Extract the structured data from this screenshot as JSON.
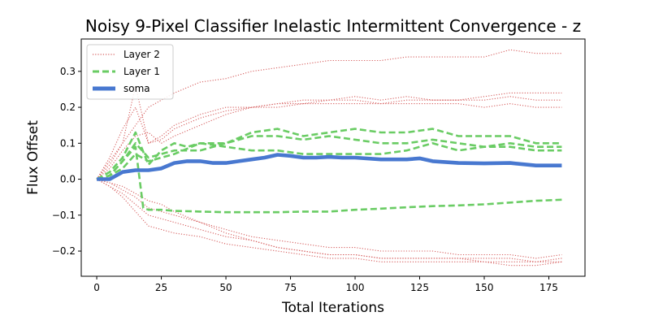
{
  "chart_data": {
    "type": "line",
    "title": "Noisy 9-Pixel Classifier Inelastic Intermittent Convergence - z",
    "xlabel": "Total Iterations",
    "ylabel": "Flux Offset",
    "xlim": [
      -6,
      189
    ],
    "ylim": [
      -0.27,
      0.39
    ],
    "xticks": [
      0,
      25,
      50,
      75,
      100,
      125,
      150,
      175
    ],
    "yticks": [
      -0.2,
      -0.1,
      0.0,
      0.1,
      0.2,
      0.3
    ],
    "ytick_labels": [
      "−0.2",
      "−0.1",
      "0.0",
      "0.1",
      "0.2",
      "0.3"
    ],
    "grid": false,
    "legend_position": "top-left",
    "legend": [
      "Layer 2",
      "Layer 1",
      "soma"
    ],
    "colors": {
      "layer2": "#d65f5f",
      "layer1": "#6acc64",
      "soma": "#4878d0"
    },
    "series": [
      {
        "name": "Layer 2",
        "group": "layer2",
        "style": "dotted",
        "x": [
          0,
          5,
          10,
          15,
          20,
          25,
          30,
          40,
          50,
          60,
          70,
          80,
          90,
          100,
          110,
          120,
          130,
          140,
          150,
          160,
          170,
          180
        ],
        "y": [
          0.0,
          0.05,
          0.1,
          0.15,
          0.2,
          0.22,
          0.24,
          0.27,
          0.28,
          0.3,
          0.31,
          0.32,
          0.33,
          0.33,
          0.33,
          0.34,
          0.34,
          0.34,
          0.34,
          0.36,
          0.35,
          0.35
        ]
      },
      {
        "name": "Layer 2",
        "group": "layer2",
        "style": "dotted",
        "x": [
          0,
          5,
          10,
          15,
          20,
          25,
          30,
          40,
          50,
          60,
          70,
          80,
          90,
          100,
          110,
          120,
          130,
          140,
          150,
          160,
          170,
          180
        ],
        "y": [
          0.0,
          0.06,
          0.14,
          0.2,
          0.1,
          0.12,
          0.15,
          0.18,
          0.2,
          0.2,
          0.21,
          0.22,
          0.22,
          0.23,
          0.22,
          0.23,
          0.22,
          0.22,
          0.23,
          0.24,
          0.24,
          0.24
        ]
      },
      {
        "name": "Layer 2",
        "group": "layer2",
        "style": "dotted",
        "x": [
          0,
          5,
          10,
          15,
          20,
          25,
          30,
          40,
          50,
          60,
          70,
          80,
          90,
          100,
          110,
          120,
          130,
          140,
          150,
          160,
          170,
          180
        ],
        "y": [
          0.0,
          0.04,
          0.1,
          0.26,
          0.1,
          0.11,
          0.14,
          0.17,
          0.19,
          0.2,
          0.21,
          0.21,
          0.22,
          0.22,
          0.21,
          0.22,
          0.22,
          0.22,
          0.22,
          0.23,
          0.22,
          0.22
        ]
      },
      {
        "name": "Layer 2",
        "group": "layer2",
        "style": "dotted",
        "x": [
          0,
          5,
          10,
          15,
          20,
          25,
          30,
          40,
          50,
          60,
          70,
          80,
          90,
          100,
          110,
          120,
          130,
          140,
          150,
          160,
          170,
          180
        ],
        "y": [
          0.0,
          0.03,
          0.08,
          0.12,
          0.13,
          0.1,
          0.12,
          0.15,
          0.18,
          0.2,
          0.2,
          0.21,
          0.21,
          0.21,
          0.21,
          0.21,
          0.21,
          0.21,
          0.2,
          0.21,
          0.2,
          0.2
        ]
      },
      {
        "name": "Layer 2",
        "group": "layer2",
        "style": "dotted",
        "x": [
          0,
          5,
          10,
          15,
          20,
          25,
          30,
          40,
          50,
          60,
          70,
          80,
          90,
          100,
          110,
          120,
          130,
          140,
          150,
          160,
          170,
          180
        ],
        "y": [
          0.0,
          -0.01,
          -0.03,
          -0.05,
          -0.08,
          -0.09,
          -0.1,
          -0.12,
          -0.14,
          -0.16,
          -0.17,
          -0.18,
          -0.19,
          -0.19,
          -0.2,
          -0.2,
          -0.2,
          -0.21,
          -0.21,
          -0.21,
          -0.22,
          -0.21
        ]
      },
      {
        "name": "Layer 2",
        "group": "layer2",
        "style": "dotted",
        "x": [
          0,
          5,
          10,
          15,
          20,
          25,
          30,
          40,
          50,
          60,
          70,
          80,
          90,
          100,
          110,
          120,
          130,
          140,
          150,
          160,
          170,
          180
        ],
        "y": [
          0.0,
          -0.02,
          -0.04,
          -0.07,
          -0.1,
          -0.11,
          -0.12,
          -0.14,
          -0.16,
          -0.17,
          -0.19,
          -0.2,
          -0.21,
          -0.21,
          -0.22,
          -0.22,
          -0.22,
          -0.22,
          -0.22,
          -0.22,
          -0.23,
          -0.22
        ]
      },
      {
        "name": "Layer 2",
        "group": "layer2",
        "style": "dotted",
        "x": [
          0,
          5,
          10,
          15,
          20,
          25,
          30,
          40,
          50,
          60,
          70,
          80,
          90,
          100,
          110,
          120,
          130,
          140,
          150,
          160,
          170,
          180
        ],
        "y": [
          0.0,
          -0.02,
          -0.05,
          -0.09,
          -0.13,
          -0.14,
          -0.15,
          -0.16,
          -0.18,
          -0.19,
          -0.2,
          -0.21,
          -0.22,
          -0.22,
          -0.23,
          -0.23,
          -0.23,
          -0.23,
          -0.23,
          -0.24,
          -0.24,
          -0.23
        ]
      },
      {
        "name": "Layer 2",
        "group": "layer2",
        "style": "dotted",
        "x": [
          0,
          5,
          10,
          15,
          20,
          25,
          30,
          40,
          50,
          60,
          70,
          80,
          90,
          100,
          110,
          120,
          130,
          140,
          150,
          160,
          170,
          180
        ],
        "y": [
          0.0,
          -0.01,
          -0.02,
          -0.04,
          -0.06,
          -0.07,
          -0.09,
          -0.12,
          -0.15,
          -0.17,
          -0.19,
          -0.2,
          -0.21,
          -0.21,
          -0.22,
          -0.22,
          -0.22,
          -0.22,
          -0.23,
          -0.23,
          -0.23,
          -0.23
        ]
      },
      {
        "name": "Layer 1",
        "group": "layer1",
        "style": "dashed",
        "x": [
          0,
          5,
          10,
          15,
          20,
          25,
          30,
          35,
          40,
          50,
          60,
          70,
          80,
          90,
          100,
          110,
          120,
          130,
          140,
          150,
          160,
          170,
          180
        ],
        "y": [
          0.0,
          0.02,
          0.06,
          0.13,
          0.04,
          0.08,
          0.1,
          0.09,
          0.1,
          0.1,
          0.13,
          0.14,
          0.12,
          0.13,
          0.14,
          0.13,
          0.13,
          0.14,
          0.12,
          0.12,
          0.12,
          0.1,
          0.1
        ]
      },
      {
        "name": "Layer 1",
        "group": "layer1",
        "style": "dashed",
        "x": [
          0,
          5,
          10,
          15,
          20,
          25,
          30,
          40,
          50,
          60,
          70,
          80,
          90,
          100,
          110,
          120,
          130,
          140,
          150,
          160,
          170,
          180
        ],
        "y": [
          0.0,
          0.01,
          0.05,
          0.1,
          0.06,
          0.07,
          0.08,
          0.08,
          0.1,
          0.12,
          0.12,
          0.11,
          0.12,
          0.11,
          0.1,
          0.1,
          0.11,
          0.1,
          0.09,
          0.1,
          0.09,
          0.09
        ]
      },
      {
        "name": "Layer 1",
        "group": "layer1",
        "style": "dashed",
        "x": [
          0,
          5,
          10,
          15,
          20,
          25,
          30,
          40,
          50,
          60,
          70,
          80,
          90,
          100,
          110,
          120,
          130,
          140,
          150,
          160,
          170,
          180
        ],
        "y": [
          0.0,
          0.01,
          0.03,
          0.07,
          0.05,
          0.06,
          0.07,
          0.1,
          0.09,
          0.08,
          0.08,
          0.07,
          0.07,
          0.07,
          0.07,
          0.08,
          0.1,
          0.08,
          0.09,
          0.09,
          0.08,
          0.08
        ]
      },
      {
        "name": "Layer 1",
        "group": "layer1",
        "style": "dashed",
        "x": [
          0,
          5,
          10,
          15,
          18,
          20,
          25,
          30,
          40,
          50,
          60,
          70,
          80,
          90,
          100,
          110,
          120,
          130,
          140,
          150,
          160,
          170,
          180
        ],
        "y": [
          0.0,
          0.01,
          0.05,
          0.09,
          -0.08,
          -0.085,
          -0.085,
          -0.088,
          -0.09,
          -0.092,
          -0.092,
          -0.092,
          -0.09,
          -0.09,
          -0.085,
          -0.082,
          -0.078,
          -0.075,
          -0.073,
          -0.07,
          -0.065,
          -0.06,
          -0.057
        ]
      },
      {
        "name": "soma",
        "group": "soma",
        "style": "solid",
        "x": [
          0,
          5,
          10,
          15,
          20,
          25,
          30,
          35,
          40,
          45,
          50,
          55,
          60,
          65,
          70,
          75,
          80,
          85,
          90,
          95,
          100,
          110,
          120,
          125,
          130,
          140,
          150,
          160,
          170,
          180
        ],
        "y": [
          0.0,
          0.0,
          0.02,
          0.025,
          0.025,
          0.03,
          0.045,
          0.05,
          0.05,
          0.045,
          0.045,
          0.05,
          0.055,
          0.06,
          0.068,
          0.065,
          0.06,
          0.06,
          0.062,
          0.06,
          0.06,
          0.055,
          0.055,
          0.058,
          0.05,
          0.045,
          0.044,
          0.045,
          0.038,
          0.038
        ]
      }
    ]
  }
}
